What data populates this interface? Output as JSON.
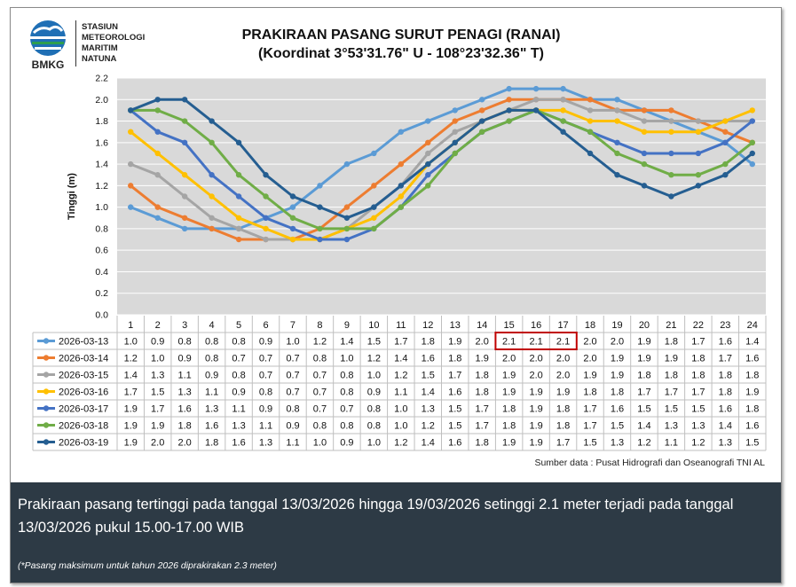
{
  "header": {
    "logo_text": "BMKG",
    "station_lines": [
      "STASIUN",
      "METEOROLOGI",
      "MARITIM",
      "NATUNA"
    ],
    "title_line1": "PRAKIRAAN PASANG SURUT PENAGI (RANAI)",
    "title_line2": "(Koordinat 3°53'31.76\" U - 108°23'32.36\" T)"
  },
  "chart_data": {
    "type": "line",
    "ylabel": "Tinggi (m)",
    "ylim": [
      0.0,
      2.2
    ],
    "yticks": [
      "0.0",
      "0.2",
      "0.4",
      "0.6",
      "0.8",
      "1.0",
      "1.2",
      "1.4",
      "1.6",
      "1.8",
      "2.0",
      "2.2"
    ],
    "categories": [
      "1",
      "2",
      "3",
      "4",
      "5",
      "6",
      "7",
      "8",
      "9",
      "10",
      "11",
      "12",
      "13",
      "14",
      "15",
      "16",
      "17",
      "18",
      "19",
      "20",
      "21",
      "22",
      "23",
      "24"
    ],
    "grid": true,
    "legend": "table-below",
    "series": [
      {
        "name": "2026-03-13",
        "color": "#5b9bd5",
        "values": [
          1.0,
          0.9,
          0.8,
          0.8,
          0.8,
          0.9,
          1.0,
          1.2,
          1.4,
          1.5,
          1.7,
          1.8,
          1.9,
          2.0,
          2.1,
          2.1,
          2.1,
          2.0,
          2.0,
          1.9,
          1.8,
          1.7,
          1.6,
          1.4
        ]
      },
      {
        "name": "2026-03-14",
        "color": "#ed7d31",
        "values": [
          1.2,
          1.0,
          0.9,
          0.8,
          0.7,
          0.7,
          0.7,
          0.8,
          1.0,
          1.2,
          1.4,
          1.6,
          1.8,
          1.9,
          2.0,
          2.0,
          2.0,
          2.0,
          1.9,
          1.9,
          1.9,
          1.8,
          1.7,
          1.6
        ]
      },
      {
        "name": "2026-03-15",
        "color": "#a5a5a5",
        "values": [
          1.4,
          1.3,
          1.1,
          0.9,
          0.8,
          0.7,
          0.7,
          0.7,
          0.8,
          1.0,
          1.2,
          1.5,
          1.7,
          1.8,
          1.9,
          2.0,
          2.0,
          1.9,
          1.9,
          1.8,
          1.8,
          1.8,
          1.8,
          1.8
        ]
      },
      {
        "name": "2026-03-16",
        "color": "#ffc000",
        "values": [
          1.7,
          1.5,
          1.3,
          1.1,
          0.9,
          0.8,
          0.7,
          0.7,
          0.8,
          0.9,
          1.1,
          1.4,
          1.6,
          1.8,
          1.9,
          1.9,
          1.9,
          1.8,
          1.8,
          1.7,
          1.7,
          1.7,
          1.8,
          1.9
        ]
      },
      {
        "name": "2026-03-17",
        "color": "#4472c4",
        "values": [
          1.9,
          1.7,
          1.6,
          1.3,
          1.1,
          0.9,
          0.8,
          0.7,
          0.7,
          0.8,
          1.0,
          1.3,
          1.5,
          1.7,
          1.8,
          1.9,
          1.8,
          1.7,
          1.6,
          1.5,
          1.5,
          1.5,
          1.6,
          1.8
        ]
      },
      {
        "name": "2026-03-18",
        "color": "#70ad47",
        "values": [
          1.9,
          1.9,
          1.8,
          1.6,
          1.3,
          1.1,
          0.9,
          0.8,
          0.8,
          0.8,
          1.0,
          1.2,
          1.5,
          1.7,
          1.8,
          1.9,
          1.8,
          1.7,
          1.5,
          1.4,
          1.3,
          1.3,
          1.4,
          1.6
        ]
      },
      {
        "name": "2026-03-19",
        "color": "#255e91",
        "values": [
          1.9,
          2.0,
          2.0,
          1.8,
          1.6,
          1.3,
          1.1,
          1.0,
          0.9,
          1.0,
          1.2,
          1.4,
          1.6,
          1.8,
          1.9,
          1.9,
          1.7,
          1.5,
          1.3,
          1.2,
          1.1,
          1.2,
          1.3,
          1.5
        ]
      }
    ],
    "highlight": {
      "series_index": 0,
      "from_category_index": 14,
      "to_category_index": 16,
      "color": "#c00000"
    }
  },
  "source": "Sumber data : Pusat Hidrografi dan Oseanografi TNI AL",
  "banner": {
    "text": "Prakiraan pasang tertinggi pada tanggal 13/03/2026 hingga 19/03/2026 setinggi 2.1 meter terjadi pada tanggal 13/03/2026 pukul 15.00-17.00 WIB",
    "note": "(*Pasang maksimum untuk tahun 2026 diprakirakan 2.3 meter)",
    "color": "#2d3a45"
  }
}
